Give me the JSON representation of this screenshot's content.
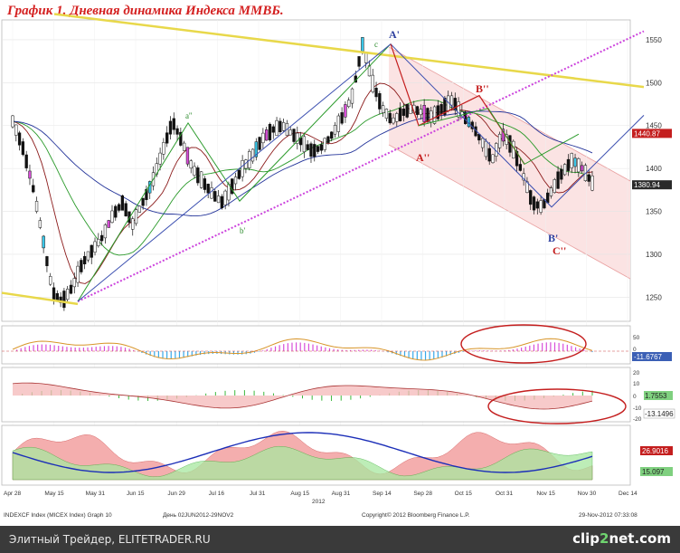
{
  "chart_data": {
    "type": "candlestick",
    "title": "График 1.   Дневная динамика Индекса ММВБ.",
    "y_ticks": [
      "1550",
      "1500",
      "1450",
      "1400",
      "1350",
      "1300",
      "1250"
    ],
    "y_tick_values": [
      1550,
      1500,
      1450,
      1400,
      1350,
      1300,
      1250
    ],
    "ylim": [
      1225,
      1570
    ],
    "x_ticks": [
      "Apr 28",
      "May 15",
      "May 31",
      "Jun 15",
      "Jun 29",
      "Jul 16",
      "Jul 31",
      "Aug 15",
      "Aug 31",
      "Sep 14",
      "Sep 28",
      "Oct 15",
      "Oct 31",
      "Nov 15",
      "Nov 30",
      "Dec 14"
    ],
    "year_label": "2012",
    "price_path": [
      1455,
      1425,
      1380,
      1320,
      1255,
      1245,
      1262,
      1290,
      1305,
      1320,
      1345,
      1360,
      1335,
      1360,
      1385,
      1420,
      1455,
      1430,
      1400,
      1385,
      1370,
      1360,
      1380,
      1400,
      1415,
      1435,
      1445,
      1450,
      1440,
      1430,
      1420,
      1425,
      1440,
      1460,
      1485,
      1545,
      1500,
      1470,
      1455,
      1465,
      1470,
      1465,
      1460,
      1470,
      1480,
      1462,
      1450,
      1430,
      1410,
      1440,
      1425,
      1395,
      1360,
      1355,
      1375,
      1395,
      1410,
      1400,
      1383
    ],
    "price_tags": [
      {
        "text": "1440.87",
        "value": 1440.87,
        "color": "#c41e1e"
      },
      {
        "text": "1380.94",
        "value": 1380.94,
        "color": "#2a2a2a"
      }
    ],
    "wave_labels": [
      {
        "text": "A'",
        "color": "#2c3e9e"
      },
      {
        "text": "B''",
        "color": "#c41e1e"
      },
      {
        "text": "A''",
        "color": "#c41e1e"
      },
      {
        "text": "B'",
        "color": "#2c3e9e"
      },
      {
        "text": "C''",
        "color": "#c41e1e"
      },
      {
        "text": "a''",
        "color": "#2a8a2a"
      },
      {
        "text": "b'",
        "color": "#2a8a2a"
      },
      {
        "text": "c",
        "color": "#2a8a2a"
      }
    ],
    "osc1": {
      "ticks": [
        "50",
        "0"
      ],
      "tag": "-11.6767"
    },
    "osc2": {
      "ticks": [
        "20",
        "10",
        "0",
        "-10",
        "-20"
      ],
      "tags": [
        "1.7553",
        "-13.1496"
      ]
    },
    "osc3": {
      "tags": [
        "26.9016",
        "15.097"
      ]
    },
    "footer": {
      "left": "INDEXCF Index (MICEX Index) Graph 10",
      "mid": "День 02JUN2012-29NOV2",
      "copyright": "Copyright© 2012 Bloomberg Finance L.P.",
      "date": "29-Nov-2012 07:33:08"
    },
    "colors": {
      "title": "#d42020",
      "up_candle": "#ffffff",
      "down_candle": "#111111",
      "trend_magenta": "#cc44dd",
      "trend_yellow": "#e8d84a",
      "channel": "#f7d0d0"
    }
  },
  "bottom_bar": {
    "site": "Элитный Трейдер, ELITETRADER.RU",
    "logo_a": "clip",
    "logo_b": "2",
    "logo_c": "net.com"
  }
}
